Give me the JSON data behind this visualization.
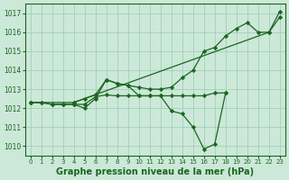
{
  "title": "Graphe pression niveau de la mer (hPa)",
  "ylabel_ticks": [
    1010,
    1011,
    1012,
    1013,
    1014,
    1015,
    1016,
    1017
  ],
  "xticks": [
    0,
    1,
    2,
    3,
    4,
    5,
    6,
    7,
    8,
    9,
    10,
    11,
    12,
    13,
    14,
    15,
    16,
    17,
    18,
    19,
    20,
    21,
    22,
    23
  ],
  "xlim": [
    -0.5,
    23.5
  ],
  "ylim": [
    1009.5,
    1017.5
  ],
  "background_color": "#cce8d8",
  "grid_color": "#99ccb0",
  "line_color": "#1a6620",
  "series": [
    {
      "x": [
        0,
        4,
        22,
        23
      ],
      "y": [
        1012.3,
        1012.3,
        1016.0,
        1016.8
      ]
    },
    {
      "x": [
        4,
        5,
        6,
        7,
        8,
        9,
        10,
        11,
        12,
        13,
        14,
        15,
        16,
        17,
        18,
        19,
        20,
        21,
        22,
        23
      ],
      "y": [
        1012.3,
        1012.5,
        1012.7,
        1013.5,
        1013.3,
        1013.2,
        1013.1,
        1013.0,
        1013.0,
        1013.1,
        1013.6,
        1014.0,
        1015.0,
        1015.2,
        1015.8,
        1016.2,
        1016.5,
        1016.0,
        1016.0,
        1017.1
      ]
    },
    {
      "x": [
        0,
        1,
        2,
        3,
        4,
        5,
        6,
        7,
        8,
        9,
        10,
        11,
        12,
        13,
        14,
        15,
        16,
        17,
        18
      ],
      "y": [
        1012.3,
        1012.3,
        1012.2,
        1012.2,
        1012.2,
        1012.0,
        1012.5,
        1013.5,
        1013.3,
        1013.2,
        1012.65,
        1012.65,
        1012.65,
        1011.85,
        1011.7,
        1011.0,
        1009.85,
        1010.1,
        1012.8
      ]
    },
    {
      "x": [
        0,
        1,
        2,
        3,
        4,
        5,
        6,
        7,
        8,
        9,
        10,
        11,
        12,
        13,
        14,
        15,
        16,
        17,
        18
      ],
      "y": [
        1012.3,
        1012.3,
        1012.2,
        1012.2,
        1012.2,
        1012.2,
        1012.6,
        1012.7,
        1012.65,
        1012.65,
        1012.65,
        1012.65,
        1012.65,
        1012.65,
        1012.65,
        1012.65,
        1012.65,
        1012.8,
        1012.8
      ]
    }
  ]
}
